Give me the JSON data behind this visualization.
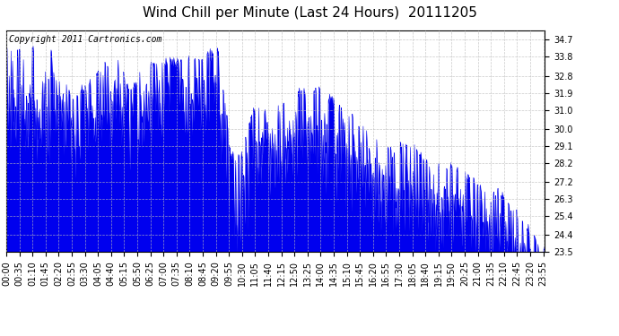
{
  "title": "Wind Chill per Minute (Last 24 Hours)  20111205",
  "copyright_text": "Copyright 2011 Cartronics.com",
  "line_color": "#0000ee",
  "bg_color": "#ffffff",
  "plot_bg_color": "#ffffff",
  "grid_color": "#bbbbbb",
  "ylim": [
    23.5,
    35.2
  ],
  "yticks": [
    23.5,
    24.4,
    25.4,
    26.3,
    27.2,
    28.2,
    29.1,
    30.0,
    31.0,
    31.9,
    32.8,
    33.8,
    34.7
  ],
  "title_fontsize": 11,
  "copyright_fontsize": 7,
  "tick_label_fontsize": 7,
  "xlabel_rotation": 90,
  "total_minutes": 1440,
  "x_tick_interval": 35,
  "x_tick_labels": [
    "00:00",
    "00:35",
    "01:10",
    "01:45",
    "02:20",
    "02:55",
    "03:30",
    "04:05",
    "04:40",
    "05:15",
    "05:50",
    "06:25",
    "07:00",
    "07:35",
    "08:10",
    "08:45",
    "09:20",
    "09:55",
    "10:30",
    "11:05",
    "11:40",
    "12:15",
    "12:50",
    "13:25",
    "14:00",
    "14:35",
    "15:10",
    "15:45",
    "16:20",
    "16:55",
    "17:30",
    "18:05",
    "18:40",
    "19:15",
    "19:50",
    "20:25",
    "21:00",
    "21:35",
    "22:10",
    "22:45",
    "23:20",
    "23:55"
  ],
  "figsize": [
    6.9,
    3.75
  ],
  "dpi": 100
}
